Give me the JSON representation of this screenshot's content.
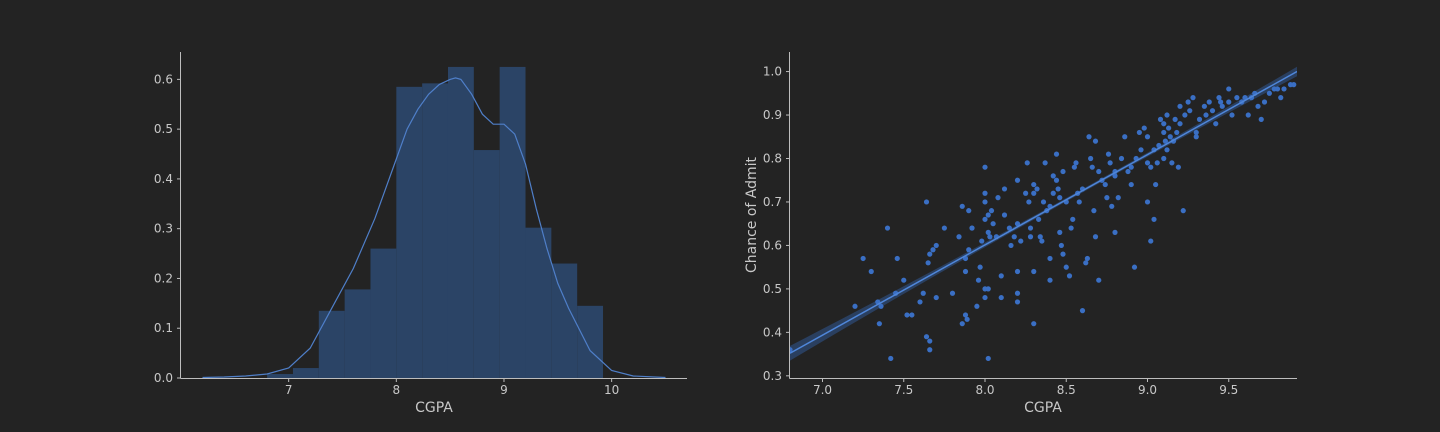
{
  "chart_data": [
    {
      "type": "bar",
      "subtype": "histogram-with-kde",
      "xlabel": "CGPA",
      "ylabel": "",
      "xlim": [
        6.0,
        10.7
      ],
      "ylim": [
        0.0,
        0.655
      ],
      "xticks": [
        7,
        8,
        9,
        10
      ],
      "yticks": [
        0.0,
        0.1,
        0.2,
        0.3,
        0.4,
        0.5,
        0.6
      ],
      "bin_edges": [
        6.8,
        7.04,
        7.28,
        7.52,
        7.76,
        8.0,
        8.24,
        8.48,
        8.72,
        8.96,
        9.2,
        9.44,
        9.68,
        9.92
      ],
      "values": [
        0.008,
        0.02,
        0.135,
        0.178,
        0.26,
        0.585,
        0.592,
        0.625,
        0.458,
        0.625,
        0.302,
        0.23,
        0.145
      ],
      "kde": {
        "x": [
          6.2,
          6.4,
          6.6,
          6.8,
          7.0,
          7.2,
          7.4,
          7.6,
          7.8,
          8.0,
          8.1,
          8.2,
          8.3,
          8.4,
          8.5,
          8.55,
          8.6,
          8.7,
          8.8,
          8.9,
          9.0,
          9.1,
          9.2,
          9.3,
          9.4,
          9.5,
          9.6,
          9.8,
          10.0,
          10.2,
          10.5
        ],
        "y": [
          0.001,
          0.002,
          0.004,
          0.008,
          0.02,
          0.06,
          0.14,
          0.22,
          0.32,
          0.44,
          0.5,
          0.54,
          0.57,
          0.59,
          0.6,
          0.603,
          0.6,
          0.57,
          0.53,
          0.51,
          0.51,
          0.49,
          0.43,
          0.34,
          0.26,
          0.19,
          0.14,
          0.055,
          0.015,
          0.004,
          0.001
        ]
      },
      "bar_color": "#2b4466",
      "line_color": "#4f7fc9"
    },
    {
      "type": "scatter",
      "subtype": "regression",
      "xlabel": "CGPA",
      "ylabel": "Chance of Admit",
      "xlim": [
        6.8,
        9.92
      ],
      "ylim": [
        0.295,
        1.045
      ],
      "xticks": [
        7.0,
        7.5,
        8.0,
        8.5,
        9.0,
        9.5
      ],
      "yticks": [
        0.3,
        0.4,
        0.5,
        0.6,
        0.7,
        0.8,
        0.9,
        1.0
      ],
      "regression": {
        "x": [
          6.8,
          9.92
        ],
        "y": [
          0.352,
          1.0
        ]
      },
      "point_color": "#3a6fc4",
      "line_color": "#4f86d9",
      "band_color": "#2a3f5f",
      "points": [
        [
          6.8,
          0.36
        ],
        [
          7.2,
          0.46
        ],
        [
          7.25,
          0.57
        ],
        [
          7.3,
          0.54
        ],
        [
          7.34,
          0.47
        ],
        [
          7.36,
          0.46
        ],
        [
          7.35,
          0.42
        ],
        [
          7.4,
          0.64
        ],
        [
          7.42,
          0.34
        ],
        [
          7.45,
          0.49
        ],
        [
          7.46,
          0.57
        ],
        [
          7.5,
          0.52
        ],
        [
          7.52,
          0.44
        ],
        [
          7.55,
          0.44
        ],
        [
          7.6,
          0.47
        ],
        [
          7.62,
          0.49
        ],
        [
          7.64,
          0.7
        ],
        [
          7.65,
          0.56
        ],
        [
          7.66,
          0.58
        ],
        [
          7.68,
          0.59
        ],
        [
          7.7,
          0.6
        ],
        [
          7.64,
          0.39
        ],
        [
          7.66,
          0.38
        ],
        [
          7.66,
          0.36
        ],
        [
          7.7,
          0.48
        ],
        [
          7.75,
          0.64
        ],
        [
          7.8,
          0.49
        ],
        [
          7.84,
          0.62
        ],
        [
          7.86,
          0.69
        ],
        [
          7.88,
          0.54
        ],
        [
          7.88,
          0.57
        ],
        [
          7.9,
          0.59
        ],
        [
          7.9,
          0.68
        ],
        [
          7.92,
          0.64
        ],
        [
          7.92,
          0.64
        ],
        [
          7.86,
          0.42
        ],
        [
          7.88,
          0.44
        ],
        [
          7.89,
          0.43
        ],
        [
          7.95,
          0.46
        ],
        [
          7.96,
          0.52
        ],
        [
          7.97,
          0.55
        ],
        [
          7.98,
          0.61
        ],
        [
          8.0,
          0.78
        ],
        [
          8.0,
          0.72
        ],
        [
          8.0,
          0.7
        ],
        [
          8.0,
          0.66
        ],
        [
          8.02,
          0.67
        ],
        [
          8.02,
          0.63
        ],
        [
          8.03,
          0.62
        ],
        [
          8.0,
          0.5
        ],
        [
          8.0,
          0.48
        ],
        [
          8.02,
          0.34
        ],
        [
          8.02,
          0.5
        ],
        [
          8.04,
          0.68
        ],
        [
          8.05,
          0.65
        ],
        [
          8.07,
          0.62
        ],
        [
          8.08,
          0.71
        ],
        [
          8.1,
          0.53
        ],
        [
          8.1,
          0.48
        ],
        [
          8.12,
          0.73
        ],
        [
          8.12,
          0.67
        ],
        [
          8.15,
          0.64
        ],
        [
          8.16,
          0.6
        ],
        [
          8.18,
          0.62
        ],
        [
          8.2,
          0.75
        ],
        [
          8.2,
          0.65
        ],
        [
          8.22,
          0.61
        ],
        [
          8.2,
          0.54
        ],
        [
          8.2,
          0.49
        ],
        [
          8.2,
          0.47
        ],
        [
          8.25,
          0.72
        ],
        [
          8.26,
          0.79
        ],
        [
          8.27,
          0.7
        ],
        [
          8.28,
          0.64
        ],
        [
          8.28,
          0.62
        ],
        [
          8.3,
          0.74
        ],
        [
          8.3,
          0.72
        ],
        [
          8.3,
          0.54
        ],
        [
          8.3,
          0.42
        ],
        [
          8.32,
          0.73
        ],
        [
          8.33,
          0.66
        ],
        [
          8.34,
          0.62
        ],
        [
          8.35,
          0.61
        ],
        [
          8.36,
          0.7
        ],
        [
          8.37,
          0.79
        ],
        [
          8.38,
          0.68
        ],
        [
          8.4,
          0.69
        ],
        [
          8.4,
          0.57
        ],
        [
          8.4,
          0.52
        ],
        [
          8.42,
          0.76
        ],
        [
          8.42,
          0.72
        ],
        [
          8.44,
          0.81
        ],
        [
          8.44,
          0.75
        ],
        [
          8.45,
          0.73
        ],
        [
          8.46,
          0.71
        ],
        [
          8.46,
          0.63
        ],
        [
          8.47,
          0.6
        ],
        [
          8.48,
          0.58
        ],
        [
          8.48,
          0.77
        ],
        [
          8.5,
          0.7
        ],
        [
          8.5,
          0.55
        ],
        [
          8.52,
          0.53
        ],
        [
          8.53,
          0.64
        ],
        [
          8.54,
          0.66
        ],
        [
          8.55,
          0.78
        ],
        [
          8.56,
          0.79
        ],
        [
          8.57,
          0.72
        ],
        [
          8.58,
          0.7
        ],
        [
          8.6,
          0.73
        ],
        [
          8.6,
          0.45
        ],
        [
          8.62,
          0.56
        ],
        [
          8.63,
          0.57
        ],
        [
          8.64,
          0.85
        ],
        [
          8.65,
          0.8
        ],
        [
          8.66,
          0.78
        ],
        [
          8.67,
          0.68
        ],
        [
          8.68,
          0.84
        ],
        [
          8.68,
          0.62
        ],
        [
          8.7,
          0.52
        ],
        [
          8.7,
          0.77
        ],
        [
          8.72,
          0.75
        ],
        [
          8.74,
          0.74
        ],
        [
          8.75,
          0.71
        ],
        [
          8.76,
          0.81
        ],
        [
          8.77,
          0.79
        ],
        [
          8.78,
          0.69
        ],
        [
          8.8,
          0.77
        ],
        [
          8.8,
          0.76
        ],
        [
          8.8,
          0.63
        ],
        [
          8.82,
          0.71
        ],
        [
          8.84,
          0.8
        ],
        [
          8.86,
          0.85
        ],
        [
          8.88,
          0.77
        ],
        [
          8.9,
          0.78
        ],
        [
          8.9,
          0.74
        ],
        [
          8.92,
          0.55
        ],
        [
          8.93,
          0.8
        ],
        [
          8.95,
          0.86
        ],
        [
          8.96,
          0.82
        ],
        [
          8.98,
          0.87
        ],
        [
          9.0,
          0.85
        ],
        [
          9.0,
          0.79
        ],
        [
          9.0,
          0.7
        ],
        [
          9.02,
          0.78
        ],
        [
          9.02,
          0.61
        ],
        [
          9.04,
          0.82
        ],
        [
          9.04,
          0.66
        ],
        [
          9.05,
          0.74
        ],
        [
          9.06,
          0.79
        ],
        [
          9.07,
          0.83
        ],
        [
          9.08,
          0.89
        ],
        [
          9.1,
          0.88
        ],
        [
          9.1,
          0.86
        ],
        [
          9.1,
          0.8
        ],
        [
          9.11,
          0.84
        ],
        [
          9.12,
          0.9
        ],
        [
          9.12,
          0.82
        ],
        [
          9.13,
          0.87
        ],
        [
          9.14,
          0.85
        ],
        [
          9.15,
          0.79
        ],
        [
          9.16,
          0.84
        ],
        [
          9.17,
          0.89
        ],
        [
          9.18,
          0.86
        ],
        [
          9.19,
          0.78
        ],
        [
          9.2,
          0.92
        ],
        [
          9.2,
          0.88
        ],
        [
          9.22,
          0.68
        ],
        [
          9.23,
          0.9
        ],
        [
          9.25,
          0.93
        ],
        [
          9.26,
          0.91
        ],
        [
          9.28,
          0.94
        ],
        [
          9.3,
          0.86
        ],
        [
          9.3,
          0.85
        ],
        [
          9.32,
          0.89
        ],
        [
          9.35,
          0.92
        ],
        [
          9.36,
          0.9
        ],
        [
          9.38,
          0.93
        ],
        [
          9.4,
          0.91
        ],
        [
          9.42,
          0.88
        ],
        [
          9.44,
          0.94
        ],
        [
          9.45,
          0.93
        ],
        [
          9.46,
          0.92
        ],
        [
          9.5,
          0.96
        ],
        [
          9.5,
          0.93
        ],
        [
          9.52,
          0.9
        ],
        [
          9.55,
          0.94
        ],
        [
          9.58,
          0.93
        ],
        [
          9.6,
          0.94
        ],
        [
          9.62,
          0.9
        ],
        [
          9.64,
          0.94
        ],
        [
          9.66,
          0.95
        ],
        [
          9.68,
          0.92
        ],
        [
          9.7,
          0.89
        ],
        [
          9.72,
          0.93
        ],
        [
          9.75,
          0.95
        ],
        [
          9.78,
          0.96
        ],
        [
          9.8,
          0.96
        ],
        [
          9.82,
          0.94
        ],
        [
          9.84,
          0.96
        ],
        [
          9.88,
          0.97
        ],
        [
          9.9,
          0.97
        ]
      ]
    }
  ]
}
